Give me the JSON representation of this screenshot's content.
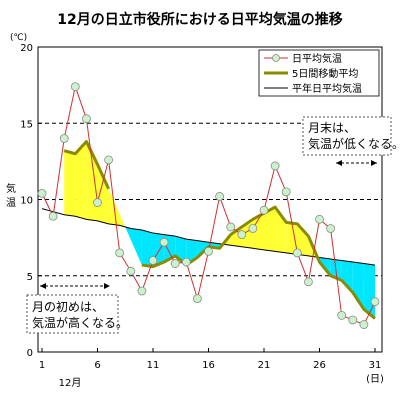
{
  "chart_data": {
    "type": "line",
    "title": "12月の日立市役所における日平均気温の推移",
    "ylabel": "気温",
    "y_unit": "(℃)",
    "xlabel": "12月",
    "x_unit": "(日)",
    "xlim": [
      1,
      31
    ],
    "ylim": [
      0,
      20
    ],
    "x_ticks": [
      "1",
      "6",
      "11",
      "16",
      "21",
      "26",
      "31"
    ],
    "y_ticks": [
      "0",
      "5",
      "10",
      "15",
      "20"
    ],
    "grid": "horizontal dashed",
    "legend_position": "top-right",
    "x": [
      1,
      2,
      3,
      4,
      5,
      6,
      7,
      8,
      9,
      10,
      11,
      12,
      13,
      14,
      15,
      16,
      17,
      18,
      19,
      20,
      21,
      22,
      23,
      24,
      25,
      26,
      27,
      28,
      29,
      30,
      31
    ],
    "series": [
      {
        "name": "日平均気温",
        "color": "#d32f2f",
        "marker": "#ccf2cc",
        "values": [
          10.4,
          8.9,
          14.0,
          17.4,
          15.3,
          9.8,
          12.6,
          6.5,
          5.3,
          4.0,
          6.0,
          7.2,
          5.8,
          5.9,
          3.5,
          6.6,
          10.2,
          8.2,
          7.7,
          8.1,
          9.3,
          12.2,
          10.5,
          6.5,
          4.6,
          8.7,
          8.1,
          2.4,
          2.1,
          1.8,
          3.3
        ]
      },
      {
        "name": "5日間移動平均",
        "color": "#8b8b00",
        "values": [
          null,
          null,
          13.2,
          13.0,
          13.8,
          12.3,
          10.7,
          null,
          null,
          5.7,
          5.6,
          5.9,
          6.3,
          5.7,
          6.2,
          6.9,
          6.8,
          7.7,
          8.2,
          8.7,
          9.1,
          9.5,
          8.5,
          8.4,
          7.6,
          5.9,
          5.0,
          4.7,
          3.9,
          2.8,
          2.2
        ]
      },
      {
        "name": "平年日平均気温",
        "color": "#000000",
        "values": [
          9.4,
          9.2,
          9.0,
          8.9,
          8.7,
          8.6,
          8.4,
          8.3,
          8.1,
          8.0,
          7.8,
          7.7,
          7.6,
          7.4,
          7.3,
          7.2,
          7.1,
          7.0,
          6.9,
          6.8,
          6.7,
          6.6,
          6.5,
          6.4,
          6.3,
          6.2,
          6.1,
          6.0,
          5.9,
          5.8,
          5.7
        ]
      }
    ],
    "fill_above_color": "#ffff33",
    "fill_below_color": "#00e6ff",
    "annotations": [
      {
        "id": "early",
        "lines": [
          "月の初めは、",
          "気温が高くなる。"
        ]
      },
      {
        "id": "late",
        "lines": [
          "月末は、",
          "気温が低くなる。"
        ]
      }
    ]
  }
}
